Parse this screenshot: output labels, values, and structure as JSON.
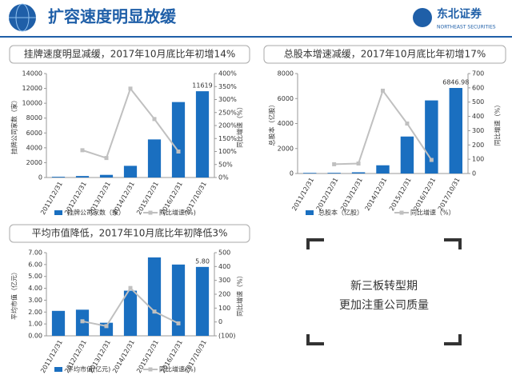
{
  "header": {
    "title": "扩容速度明显放缓",
    "logo_name": "东北证券",
    "logo_subtitle": "NORTHEAST SECURITIES"
  },
  "note": {
    "lines": [
      "新三板转型期",
      "更加注重公司质量"
    ]
  },
  "chart_data": [
    {
      "type": "combo",
      "title": "挂牌速度明显减缓，2017年10月底比年初增14%",
      "categories": [
        "2011/12/31",
        "2012/12/31",
        "2013/12/31",
        "2014/12/31",
        "2015/12/31",
        "2016/12/31",
        "2017/10/31"
      ],
      "ylabel": "挂牌公司家数（家）",
      "y2label": "同比增速（%）",
      "ylim": [
        0,
        14000
      ],
      "yticks": [
        0,
        2000,
        4000,
        6000,
        8000,
        10000,
        12000,
        14000
      ],
      "y2lim": [
        0,
        400
      ],
      "y2ticks": [
        {
          "value": 0,
          "label": "0%"
        },
        {
          "value": 50,
          "label": "50%"
        },
        {
          "value": 100,
          "label": "100%"
        },
        {
          "value": 150,
          "label": "150%"
        },
        {
          "value": 200,
          "label": "200%"
        },
        {
          "value": 250,
          "label": "250%"
        },
        {
          "value": 300,
          "label": "300%"
        },
        {
          "value": 350,
          "label": "350%"
        },
        {
          "value": 400,
          "label": "400%"
        }
      ],
      "series": [
        {
          "name": "挂牌公司家数（家）",
          "type": "bar",
          "color": "#1a6fc0",
          "values": [
            100,
            200,
            356,
            1572,
            5129,
            10163,
            11619
          ],
          "value_labels": [
            null,
            null,
            null,
            null,
            null,
            null,
            "11619"
          ]
        },
        {
          "name": "同比增速(%)",
          "type": "line",
          "axis": "y2",
          "color": "#c0c0c0",
          "values": [
            null,
            105,
            75,
            342,
            225,
            100,
            null
          ]
        }
      ]
    },
    {
      "type": "combo",
      "title": "总股本增速减缓，2017年10月底比年初增17%",
      "categories": [
        "2011/12/31",
        "2012/12/31",
        "2013/12/31",
        "2014/12/31",
        "2015/12/31",
        "2016/12/31",
        "2017/10/31"
      ],
      "ylabel": "总股本（亿股）",
      "y2label": "同比增速（%）",
      "ylim": [
        0,
        8000
      ],
      "yticks": [
        0,
        2000,
        4000,
        6000,
        8000
      ],
      "y2lim": [
        0,
        700
      ],
      "y2ticks": [
        0,
        100,
        200,
        300,
        400,
        500,
        600,
        700
      ],
      "series": [
        {
          "name": "总股本（亿股）",
          "type": "bar",
          "color": "#1a6fc0",
          "values": [
            50,
            55,
            97,
            658,
            2960,
            5851,
            6846.98
          ],
          "value_labels": [
            null,
            null,
            null,
            null,
            null,
            null,
            "6846.98"
          ]
        },
        {
          "name": "同比增速（%）",
          "type": "line",
          "axis": "y2",
          "color": "#c0c0c0",
          "values": [
            null,
            65,
            70,
            580,
            350,
            95,
            null
          ]
        }
      ]
    },
    {
      "type": "combo",
      "title": "平均市值降低，2017年10月底比年初降低3%",
      "categories": [
        "2011/12/31",
        "2012/12/31",
        "2013/12/31",
        "2014/12/31",
        "2015/12/31",
        "2016/12/31",
        "2017/10/31"
      ],
      "ylabel": "平均市值（亿元）",
      "y2label": "同比增速（%）",
      "ylim": [
        0,
        7
      ],
      "yticks": [
        {
          "value": 0,
          "label": "0.00"
        },
        {
          "value": 1,
          "label": "1.00"
        },
        {
          "value": 2,
          "label": "2.00"
        },
        {
          "value": 3,
          "label": "3.00"
        },
        {
          "value": 4,
          "label": "4.00"
        },
        {
          "value": 5,
          "label": "5.00"
        },
        {
          "value": 6,
          "label": "6.00"
        },
        {
          "value": 7,
          "label": "7.00"
        }
      ],
      "y2lim": [
        -100,
        500
      ],
      "y2ticks": [
        {
          "value": -100,
          "label": "(100)"
        },
        0,
        100,
        200,
        300,
        400,
        500
      ],
      "series": [
        {
          "name": "平均市值(亿元)",
          "type": "bar",
          "color": "#1a6fc0",
          "values": [
            2.1,
            2.2,
            1.1,
            3.8,
            6.6,
            6.0,
            5.8
          ],
          "value_labels": [
            null,
            null,
            null,
            null,
            null,
            null,
            "5.80"
          ]
        },
        {
          "name": "同比增速(%)",
          "type": "line",
          "axis": "y2",
          "color": "#c0c0c0",
          "values": [
            null,
            5,
            -30,
            245,
            75,
            -10,
            null
          ]
        }
      ]
    }
  ]
}
